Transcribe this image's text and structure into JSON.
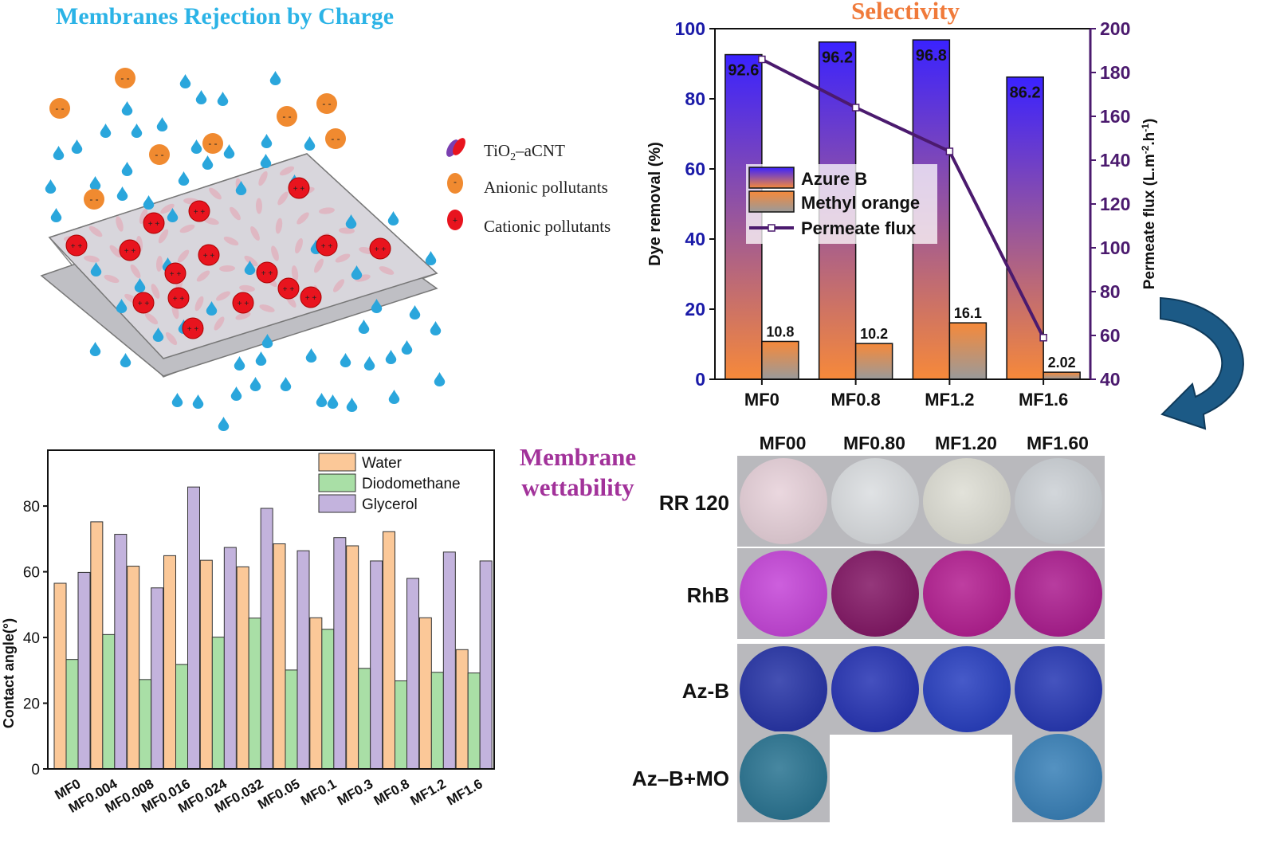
{
  "figure": {
    "membranes_title": "Membranes Rejection by Charge",
    "selectivity_title": "Selectivity",
    "wettability_title_line1": "Membrane",
    "wettability_title_line2": "wettability"
  },
  "schematic_legend": {
    "tio2_main": "TiO",
    "tio2_sub": "2",
    "tio2_rest": "–aCNT",
    "anionic": "Anionic  pollutants",
    "cationic": "Cationic  pollutants",
    "colors": {
      "water": "#2aa6dc",
      "anion": "#f08a30",
      "cation": "#e8141e",
      "membrane": "#c9c9cf"
    }
  },
  "chart_data": [
    {
      "type": "bar",
      "categories": [
        "MF0",
        "MF0.8",
        "MF1.2",
        "MF1.6"
      ],
      "series": [
        {
          "name": "Azure B",
          "values": [
            92.6,
            96.2,
            96.8,
            86.2
          ],
          "data_labels": [
            "92.6",
            "96.2",
            "96.8",
            "86.2"
          ]
        },
        {
          "name": "Methyl orange",
          "values": [
            10.8,
            10.2,
            16.1,
            2.02
          ],
          "data_labels": [
            "10.8",
            "10.2",
            "16.1",
            "2.02"
          ]
        },
        {
          "name": "Permeate flux",
          "type": "line",
          "axis": "right",
          "values": [
            186,
            164,
            144,
            59
          ]
        }
      ],
      "ylabel": "Dye removal (%)",
      "ylabel_right_main": "Permeate flux (L.m",
      "ylabel_right_sup1": "-2",
      "ylabel_right_mid": ".h",
      "ylabel_right_sup2": "-1",
      "ylabel_right_end": ")",
      "ylim": [
        0,
        100
      ],
      "yticks": [
        0,
        20,
        40,
        60,
        80,
        100
      ],
      "ylim_right": [
        40,
        200
      ],
      "yticks_right": [
        40,
        60,
        80,
        100,
        120,
        140,
        160,
        180,
        200
      ],
      "legend_position": "center-left",
      "colors": {
        "azure_top": "#3a22ff",
        "azure_bottom": "#f6893a",
        "mo_top": "#f6893a",
        "mo_bottom": "#9a9a9a",
        "flux": "#4b1a6e",
        "left_axis": "#1a1aa8",
        "right_axis": "#4b1a6e"
      }
    },
    {
      "type": "bar",
      "categories": [
        "MF0",
        "MF0.004",
        "MF0.008",
        "MF0.016",
        "MF0.024",
        "MF0.032",
        "MF0.05",
        "MF0.1",
        "MF0.3",
        "MF0.8",
        "MF1.2",
        "MF1.6"
      ],
      "series": [
        {
          "name": "Water",
          "values": [
            56.5,
            75.2,
            61.7,
            64.9,
            63.5,
            61.5,
            68.5,
            46.0,
            67.9,
            72.2,
            46.0,
            36.3
          ]
        },
        {
          "name": "Diodomethane",
          "values": [
            33.3,
            40.9,
            27.2,
            31.8,
            40.1,
            45.9,
            30.1,
            42.5,
            30.6,
            26.8,
            29.4,
            29.2
          ]
        },
        {
          "name": "Glycerol",
          "values": [
            59.8,
            71.4,
            55.1,
            85.8,
            67.4,
            79.3,
            66.4,
            70.4,
            63.3,
            58.0,
            66.0,
            63.3
          ]
        }
      ],
      "ylabel": "Contact angle(°)",
      "ylim": [
        0,
        97
      ],
      "yticks": [
        0,
        20,
        40,
        60,
        80
      ],
      "legend_position": "top-right",
      "colors": {
        "water": "#fbc898",
        "diodomethane": "#a9dfa6",
        "glycerol": "#c3b3dd"
      }
    }
  ],
  "photo_grid": {
    "columns": [
      "MF00",
      "MF0.80",
      "MF1.20",
      "MF1.60"
    ],
    "rows": [
      {
        "label": "RR 120",
        "colors": [
          "#e6cfd8",
          "#d9dcdf",
          "#dcdcd2",
          "#c9ced3"
        ]
      },
      {
        "label": "RhB",
        "colors": [
          "#c23cd6",
          "#7d0c5e",
          "#b0148c",
          "#a8128a"
        ]
      },
      {
        "label": "Az-B",
        "colors": [
          "#1c2aa2",
          "#1c2ab0",
          "#1e36bd",
          "#1c2eb0"
        ]
      },
      {
        "label": "Az–B+MO",
        "colors": [
          "#1f6d8c",
          "",
          "",
          "#2f7ab4"
        ]
      }
    ]
  }
}
